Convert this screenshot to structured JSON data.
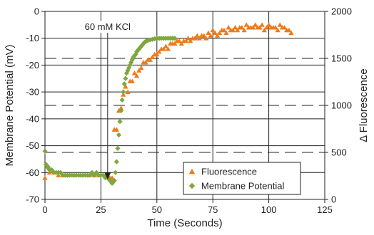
{
  "chart_data": {
    "type": "scatter",
    "xlabel": "Time (Seconds)",
    "ylabel": "Membrane Potential (mV)",
    "y2label": "Δ Fluorescence",
    "xlim": [
      0,
      125
    ],
    "ylim": [
      -70,
      0
    ],
    "y2lim": [
      0,
      2000
    ],
    "x_ticks": [
      "0",
      "25",
      "50",
      "75",
      "100",
      "125"
    ],
    "y_ticks": [
      "0",
      "-10",
      "-20",
      "-30",
      "-40",
      "-50",
      "-60",
      "-70"
    ],
    "y2_ticks": [
      "0",
      "500",
      "1000",
      "1500",
      "2000"
    ],
    "grid": true,
    "legend_position": "bottom-right",
    "annotation": {
      "text": "60 mM KCl",
      "x": 28
    },
    "colors": {
      "fluorescence": "#f07a18",
      "membrane": "#7fa83c"
    },
    "series": [
      {
        "name": "Fluorescence",
        "axis": "right",
        "marker": "triangle",
        "x": [
          0,
          2,
          4,
          6,
          8,
          10,
          13,
          16,
          20,
          22,
          24,
          27,
          28,
          29,
          30,
          31,
          32,
          33,
          34,
          35,
          36,
          37,
          38,
          39,
          40,
          41,
          42,
          43,
          44,
          45,
          46,
          47,
          48,
          49,
          50,
          51,
          52,
          53,
          54,
          55,
          56,
          57,
          58,
          59,
          60,
          61,
          62,
          63,
          64,
          65,
          66,
          67,
          68,
          69,
          70,
          71,
          72,
          73,
          74,
          75,
          76,
          77,
          78,
          79,
          80,
          81,
          82,
          83,
          84,
          85,
          86,
          87,
          88,
          89,
          90,
          91,
          92,
          93,
          94,
          95,
          96,
          97,
          98,
          99,
          100,
          101,
          102,
          103,
          104,
          105,
          106,
          107,
          108,
          109,
          110
        ],
        "y": [
          -62,
          -60,
          -60,
          -61,
          -61,
          -61,
          -61,
          -61,
          -61,
          -61,
          -61,
          -61,
          -61,
          -62,
          -62,
          -44,
          -44,
          -37,
          -36,
          -31,
          -28,
          -30,
          -26,
          -26,
          -23,
          -24,
          -22,
          -21,
          -19,
          -19,
          -18,
          -18,
          -17,
          -16,
          -16,
          -15,
          -14,
          -14,
          -13,
          -14,
          -12,
          -12,
          -12,
          -11,
          -11,
          -12,
          -11,
          -11,
          -10,
          -11,
          -10,
          -10,
          -9,
          -10,
          -9,
          -9,
          -10,
          -8,
          -9,
          -7,
          -8,
          -9,
          -8,
          -7,
          -7,
          -8,
          -6,
          -7,
          -7,
          -6,
          -7,
          -6,
          -6,
          -7,
          -5,
          -6,
          -6,
          -6,
          -5,
          -6,
          -6,
          -5,
          -7,
          -6,
          -5,
          -6,
          -6,
          -6,
          -7,
          -5,
          -6,
          -6,
          -7,
          -7,
          -8
        ]
      },
      {
        "name": "Membrane Potential",
        "axis": "left",
        "marker": "diamond",
        "x": [
          0,
          0.5,
          1,
          1.5,
          2,
          3,
          4,
          5,
          6,
          7,
          8,
          9,
          10,
          11,
          12,
          13,
          14,
          15,
          16,
          17,
          18,
          19,
          20,
          21,
          22,
          23,
          24,
          25,
          26,
          27,
          28,
          29,
          30,
          30.5,
          31,
          31.5,
          32,
          32.5,
          33,
          33.5,
          34,
          34.5,
          35,
          35.5,
          36,
          36.5,
          37,
          37.5,
          38,
          38.5,
          39,
          39.5,
          40,
          40.5,
          41,
          41.5,
          42,
          42.5,
          43,
          43.5,
          44,
          44.5,
          45,
          45.5,
          46,
          47,
          48,
          49,
          50,
          51,
          52,
          53,
          54,
          55,
          56,
          57,
          58
        ],
        "y": [
          -52,
          -57,
          -58,
          -58,
          -59,
          -59,
          -60,
          -60,
          -60,
          -60,
          -61,
          -61,
          -61,
          -61,
          -61,
          -61,
          -61,
          -61,
          -61,
          -61,
          -61,
          -61,
          -61,
          -60,
          -61,
          -60,
          -61,
          -61,
          -61,
          -62,
          -62,
          -63,
          -64,
          -63.5,
          -63,
          -60,
          -56,
          -51,
          -46,
          -41,
          -37,
          -33,
          -30,
          -27,
          -25,
          -23,
          -22,
          -21,
          -20,
          -19,
          -18,
          -17,
          -16.5,
          -16,
          -15,
          -14.5,
          -14,
          -13.5,
          -13,
          -12.5,
          -12,
          -11.5,
          -11.2,
          -11,
          -10.8,
          -10.6,
          -10.4,
          -10.2,
          -10.1,
          -10,
          -10,
          -10,
          -10,
          -10,
          -10,
          -10,
          -10
        ]
      }
    ]
  }
}
